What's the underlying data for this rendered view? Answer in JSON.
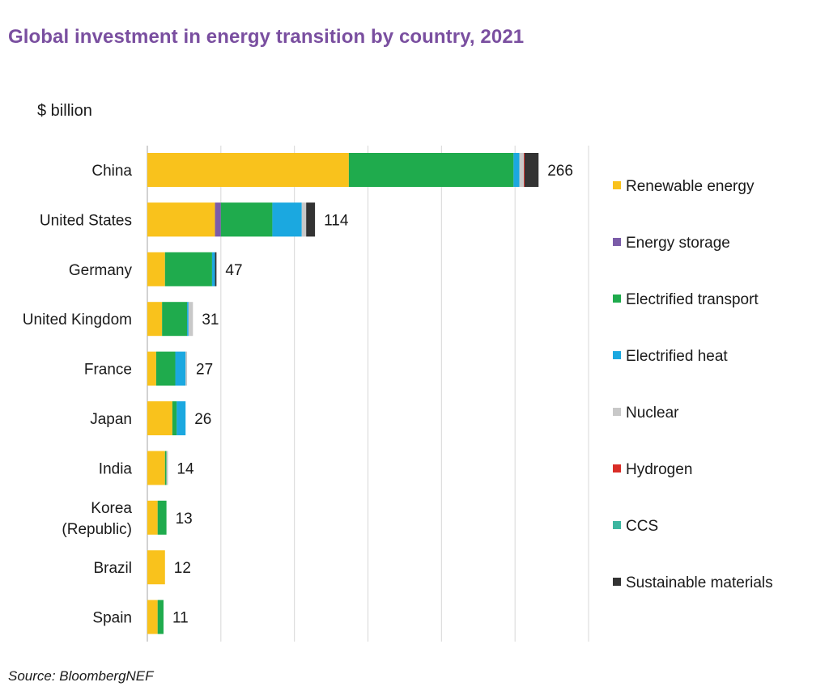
{
  "title": "Global investment in energy transition by country, 2021",
  "unit_label": "$ billion",
  "source": "Source: BloombergNEF",
  "chart_data": {
    "type": "bar",
    "orientation": "horizontal",
    "stacked": true,
    "xlim": [
      0,
      300
    ],
    "grid": true,
    "legend_position": "right",
    "categories": [
      {
        "lines": [
          "China"
        ],
        "total": "266"
      },
      {
        "lines": [
          "United States"
        ],
        "total": "114"
      },
      {
        "lines": [
          "Germany"
        ],
        "total": "47"
      },
      {
        "lines": [
          "United Kingdom"
        ],
        "total": "31"
      },
      {
        "lines": [
          "France"
        ],
        "total": "27"
      },
      {
        "lines": [
          "Japan"
        ],
        "total": "26"
      },
      {
        "lines": [
          "India"
        ],
        "total": "14"
      },
      {
        "lines": [
          "Korea",
          "(Republic)"
        ],
        "total": "13"
      },
      {
        "lines": [
          "Brazil"
        ],
        "total": "12"
      },
      {
        "lines": [
          "Spain"
        ],
        "total": "11"
      }
    ],
    "series": [
      {
        "name": "Renewable energy",
        "color": "#f9c21c",
        "values": [
          137,
          46,
          12,
          10,
          6,
          17,
          12,
          7,
          12,
          7
        ]
      },
      {
        "name": "Energy storage",
        "color": "#7b5ca8",
        "values": [
          0,
          4,
          0,
          0,
          0,
          0,
          0,
          0,
          0,
          0
        ]
      },
      {
        "name": "Electrified transport",
        "color": "#1fab4d",
        "values": [
          112,
          35,
          32,
          17,
          13,
          3,
          1,
          6,
          0,
          4
        ]
      },
      {
        "name": "Electrified heat",
        "color": "#1ba8e0",
        "values": [
          4,
          20,
          2,
          1,
          7,
          6,
          0,
          0,
          0,
          0
        ]
      },
      {
        "name": "Nuclear",
        "color": "#c8c8c8",
        "values": [
          3,
          3,
          0,
          3,
          1,
          0,
          1,
          0,
          0,
          0
        ]
      },
      {
        "name": "Hydrogen",
        "color": "#d92d27",
        "values": [
          0.5,
          0,
          0,
          0,
          0,
          0,
          0,
          0,
          0,
          0
        ]
      },
      {
        "name": "CCS",
        "color": "#3cb6a0",
        "values": [
          0,
          0,
          0,
          0,
          0,
          0,
          0,
          0,
          0,
          0
        ]
      },
      {
        "name": "Sustainable materials",
        "color": "#333333",
        "values": [
          9.5,
          6,
          1,
          0,
          0,
          0,
          0,
          0,
          0,
          0
        ]
      }
    ]
  }
}
